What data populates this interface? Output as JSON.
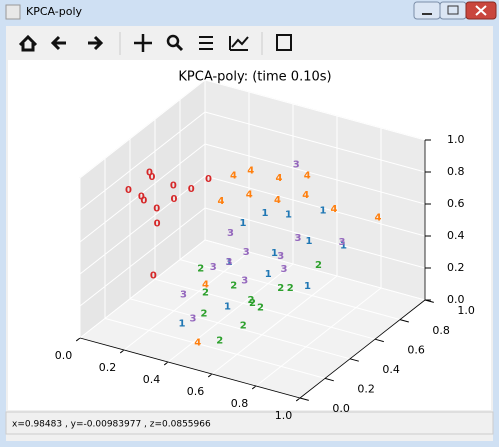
{
  "window": {
    "title": "KPCA-poly"
  },
  "status": {
    "text": "x=0.98483     , y=-0.00983977 , z=0.0855966"
  },
  "chart_data": {
    "type": "scatter3d",
    "title": "KPCA-poly: (time 0.10s)",
    "xlim": [
      0,
      1
    ],
    "ylim": [
      0,
      1
    ],
    "zlim": [
      0,
      1
    ],
    "xticks": [
      {
        "value": 0,
        "label": "0.0"
      },
      {
        "value": 0.2,
        "label": "0.2"
      },
      {
        "value": 0.4,
        "label": "0.4"
      },
      {
        "value": 0.6,
        "label": "0.6"
      },
      {
        "value": 0.8,
        "label": "0.8"
      },
      {
        "value": 1,
        "label": "1.0"
      }
    ],
    "yticks": [
      {
        "value": 0,
        "label": "0.0"
      },
      {
        "value": 0.2,
        "label": "0.2"
      },
      {
        "value": 0.4,
        "label": "0.4"
      },
      {
        "value": 0.6,
        "label": "0.6"
      },
      {
        "value": 0.8,
        "label": "0.8"
      },
      {
        "value": 1,
        "label": "1.0"
      }
    ],
    "zticks": [
      {
        "value": 0,
        "label": "0.0"
      },
      {
        "value": 0.2,
        "label": "0.2"
      },
      {
        "value": 0.4,
        "label": "0.4"
      },
      {
        "value": 0.6,
        "label": "0.6"
      },
      {
        "value": 0.8,
        "label": "0.8"
      },
      {
        "value": 1,
        "label": "1.0"
      }
    ],
    "grid": true,
    "series": [
      {
        "name": "0",
        "color": "#d62728",
        "x": [
          0.05,
          0.08,
          0.12,
          0.1,
          0.15,
          0.2,
          0.06,
          0.18,
          0.25,
          0.14,
          0.3,
          0.22
        ],
        "y": [
          0.3,
          0.35,
          0.3,
          0.4,
          0.35,
          0.4,
          0.45,
          0.3,
          0.45,
          0.5,
          0.5,
          0.2
        ],
        "z": [
          0.76,
          0.7,
          0.72,
          0.8,
          0.65,
          0.7,
          0.78,
          0.6,
          0.75,
          0.7,
          0.8,
          0.35
        ]
      },
      {
        "name": "1",
        "color": "#1f77b4",
        "x": [
          0.5,
          0.55,
          0.6,
          0.7,
          0.45,
          0.65,
          0.5,
          0.35,
          0.8,
          0.75,
          0.4,
          0.6
        ],
        "y": [
          0.6,
          0.7,
          0.5,
          0.6,
          0.4,
          0.8,
          0.3,
          0.2,
          0.7,
          0.5,
          0.6,
          0.45
        ],
        "z": [
          0.6,
          0.55,
          0.45,
          0.5,
          0.4,
          0.55,
          0.2,
          0.1,
          0.45,
          0.3,
          0.5,
          0.35
        ]
      },
      {
        "name": "2",
        "color": "#2ca02c",
        "x": [
          0.4,
          0.5,
          0.55,
          0.6,
          0.45,
          0.65,
          0.7,
          0.5,
          0.35,
          0.6,
          0.8,
          0.55
        ],
        "y": [
          0.3,
          0.35,
          0.4,
          0.25,
          0.2,
          0.3,
          0.45,
          0.5,
          0.35,
          0.55,
          0.5,
          0.15
        ],
        "z": [
          0.25,
          0.3,
          0.2,
          0.15,
          0.2,
          0.25,
          0.3,
          0.1,
          0.35,
          0.2,
          0.45,
          0.1
        ]
      },
      {
        "name": "3",
        "color": "#9467bd",
        "x": [
          0.4,
          0.45,
          0.5,
          0.55,
          0.35,
          0.6,
          0.7,
          0.3,
          0.65,
          0.5,
          0.85,
          0.4
        ],
        "y": [
          0.5,
          0.4,
          0.45,
          0.35,
          0.45,
          0.55,
          0.4,
          0.3,
          0.6,
          0.85,
          0.6,
          0.2
        ],
        "z": [
          0.5,
          0.4,
          0.45,
          0.35,
          0.3,
          0.4,
          0.45,
          0.2,
          0.5,
          0.75,
          0.55,
          0.15
        ]
      },
      {
        "name": "4",
        "color": "#ff7f0e",
        "x": [
          0.3,
          0.35,
          0.4,
          0.45,
          0.5,
          0.55,
          0.6,
          0.3,
          0.7,
          0.4,
          0.45,
          0.9
        ],
        "y": [
          0.7,
          0.75,
          0.65,
          0.8,
          0.7,
          0.85,
          0.75,
          0.6,
          0.8,
          0.3,
          0.15,
          0.8
        ],
        "z": [
          0.7,
          0.72,
          0.65,
          0.68,
          0.62,
          0.7,
          0.66,
          0.6,
          0.58,
          0.3,
          0.05,
          0.6
        ]
      }
    ]
  }
}
